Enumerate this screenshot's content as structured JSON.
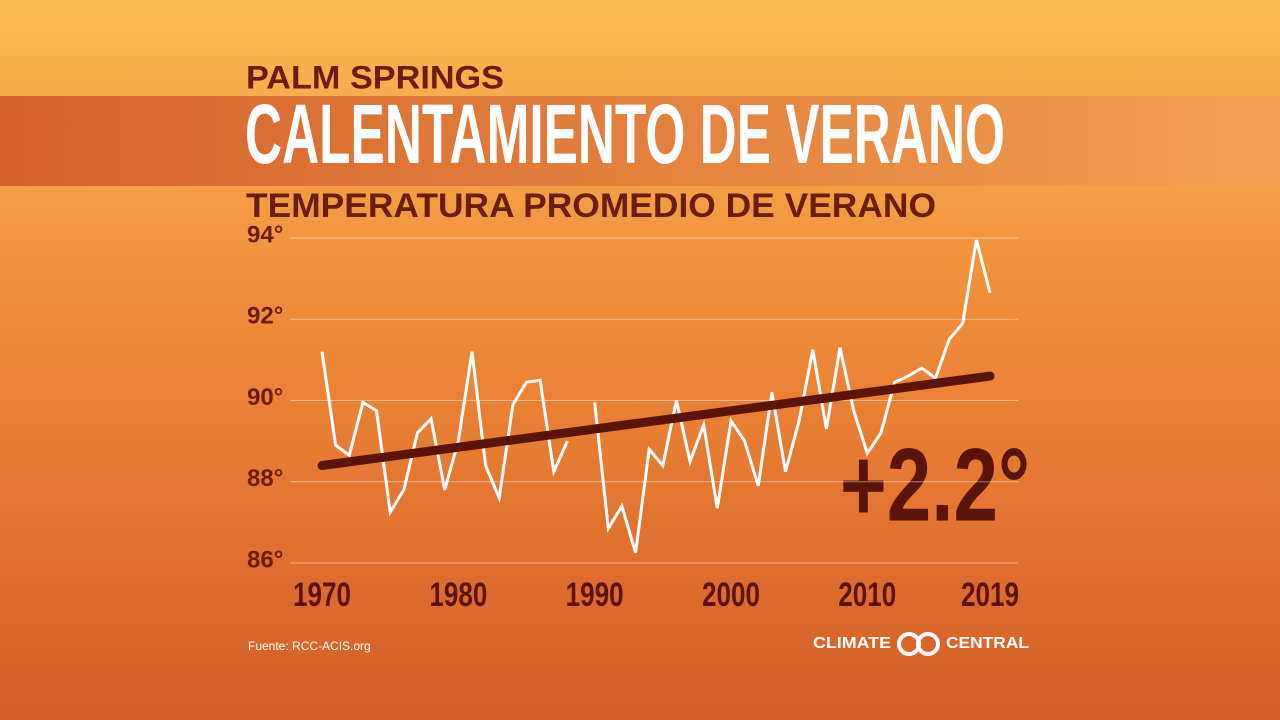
{
  "chart_data": {
    "type": "line",
    "kicker": "PALM SPRINGS",
    "title": "CALENTAMIENTO DE VERANO",
    "subtitle": "TEMPERATURA PROMEDIO DE VERANO",
    "annotation": "+2.2°",
    "source": "Fuente: RCC-ACIS.org",
    "brand": [
      "CLIMATE",
      "CENTRAL"
    ],
    "x": [
      1970,
      1971,
      1972,
      1973,
      1974,
      1975,
      1976,
      1977,
      1978,
      1979,
      1980,
      1981,
      1982,
      1983,
      1984,
      1985,
      1986,
      1987,
      1988,
      1989,
      1990,
      1991,
      1992,
      1993,
      1994,
      1995,
      1996,
      1997,
      1998,
      1999,
      2000,
      2001,
      2002,
      2003,
      2004,
      2005,
      2006,
      2007,
      2008,
      2009,
      2010,
      2011,
      2012,
      2013,
      2014,
      2015,
      2016,
      2017,
      2018,
      2019
    ],
    "series": [
      {
        "color": "#ffffff",
        "values": [
          91.2,
          88.9,
          88.65,
          89.95,
          89.75,
          87.25,
          87.8,
          89.2,
          89.55,
          87.8,
          89.0,
          91.2,
          88.4,
          87.6,
          89.9,
          90.45,
          90.5,
          88.25,
          89.0,
          null,
          89.95,
          86.85,
          87.4,
          86.25,
          88.8,
          88.4,
          90.0,
          88.5,
          89.4,
          87.35,
          89.5,
          89.0,
          87.9,
          90.2,
          88.25,
          89.5,
          91.25,
          89.3,
          91.3,
          89.75,
          88.7,
          89.2,
          90.45,
          90.6,
          90.8,
          90.55,
          91.5,
          91.9,
          93.95,
          92.65
        ]
      }
    ],
    "trend": {
      "color": "#5c1409",
      "x": [
        1970,
        2019
      ],
      "values": [
        88.4,
        90.6
      ]
    },
    "xlim": [
      1970,
      2019
    ],
    "xticks": [
      1970,
      1980,
      1990,
      2000,
      2010,
      2019
    ],
    "ylim": [
      86,
      94
    ],
    "yticks": [
      {
        "value": 86,
        "label": "86°"
      },
      {
        "value": 88,
        "label": "88°"
      },
      {
        "value": 90,
        "label": "90°"
      },
      {
        "value": 92,
        "label": "92°"
      },
      {
        "value": 94,
        "label": "94°"
      }
    ],
    "grid": true
  }
}
